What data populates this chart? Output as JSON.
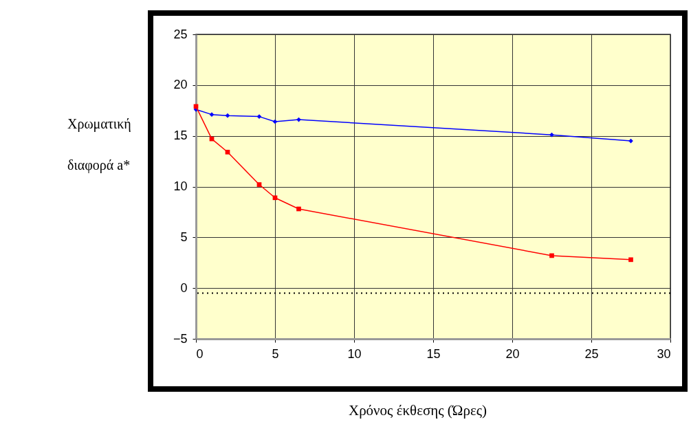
{
  "chart_data": {
    "type": "line",
    "xlabel": "Χρόνος έκθεσης (Ώρες)",
    "ylabel": "Χρωματική διαφορά a*",
    "x": [
      0,
      1,
      2,
      4,
      5,
      6.5,
      22.5,
      27.5
    ],
    "series": [
      {
        "color": "#0000ff",
        "marker": "diamond",
        "values": [
          17.6,
          17.1,
          17.0,
          16.9,
          16.4,
          16.6,
          15.1,
          14.5
        ]
      },
      {
        "color": "#ff0000",
        "marker": "square",
        "values": [
          17.9,
          14.7,
          13.4,
          10.2,
          8.9,
          7.8,
          3.2,
          2.8
        ]
      }
    ],
    "xlim": [
      0,
      30
    ],
    "xticks": [
      0,
      5,
      10,
      15,
      20,
      25,
      30
    ],
    "ylim": [
      -5,
      25
    ],
    "yticks": [
      -5,
      0,
      5,
      10,
      15,
      20,
      25
    ],
    "grid": true,
    "legend": false,
    "line_style": "solid",
    "ref_lines": [
      {
        "axis": "y",
        "value": -0.5,
        "color": "#000000",
        "line_style": "dotted"
      }
    ]
  }
}
